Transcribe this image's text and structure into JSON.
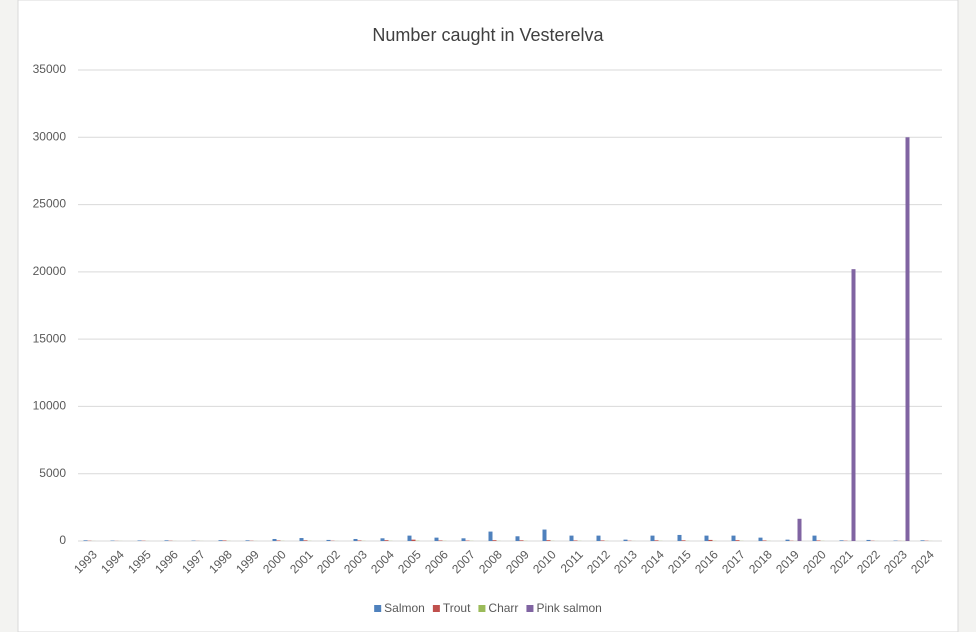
{
  "chart_data": {
    "type": "bar",
    "title": "Number caught in Vesterelva",
    "categories": [
      "1993",
      "1994",
      "1995",
      "1996",
      "1997",
      "1998",
      "1999",
      "2000",
      "2001",
      "2002",
      "2003",
      "2004",
      "2005",
      "2006",
      "2007",
      "2008",
      "2009",
      "2010",
      "2011",
      "2012",
      "2013",
      "2014",
      "2015",
      "2016",
      "2017",
      "2018",
      "2019",
      "2020",
      "2021",
      "2022",
      "2023",
      "2024"
    ],
    "series": [
      {
        "name": "Salmon",
        "color": "#4f81bd",
        "values": [
          50,
          30,
          40,
          50,
          30,
          60,
          50,
          150,
          220,
          80,
          150,
          200,
          400,
          250,
          200,
          700,
          350,
          850,
          400,
          400,
          100,
          400,
          450,
          400,
          400,
          250,
          100,
          400,
          50,
          80,
          30,
          50
        ]
      },
      {
        "name": "Trout",
        "color": "#c0504d",
        "values": [
          20,
          10,
          20,
          20,
          10,
          40,
          20,
          40,
          50,
          20,
          40,
          60,
          100,
          40,
          30,
          60,
          50,
          60,
          40,
          40,
          20,
          50,
          50,
          80,
          60,
          40,
          20,
          40,
          20,
          20,
          10,
          20
        ]
      },
      {
        "name": "Charr",
        "color": "#9bbb59",
        "values": [
          5,
          5,
          5,
          5,
          5,
          10,
          5,
          10,
          10,
          5,
          10,
          10,
          20,
          10,
          10,
          10,
          10,
          10,
          10,
          10,
          5,
          10,
          10,
          10,
          10,
          10,
          5,
          10,
          5,
          5,
          5,
          5
        ]
      },
      {
        "name": "Pink salmon",
        "color": "#8064a2",
        "values": [
          0,
          0,
          0,
          0,
          0,
          0,
          0,
          0,
          0,
          0,
          0,
          0,
          0,
          0,
          0,
          0,
          0,
          0,
          0,
          0,
          0,
          0,
          0,
          0,
          0,
          0,
          1650,
          0,
          20200,
          0,
          30000,
          0
        ]
      }
    ],
    "ylim": [
      0,
      35000
    ],
    "yticks": [
      0,
      5000,
      10000,
      15000,
      20000,
      25000,
      30000,
      35000
    ],
    "grid": true,
    "legend": "bottom"
  }
}
